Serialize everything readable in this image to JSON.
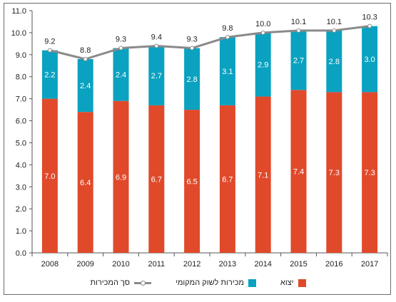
{
  "chart_data": {
    "type": "bar",
    "stacked": true,
    "categories": [
      "2008",
      "2009",
      "2010",
      "2011",
      "2012",
      "2013",
      "2014",
      "2015",
      "2016",
      "2017"
    ],
    "series": [
      {
        "name": "יצוא",
        "color": "#e04a2b",
        "values": [
          7.0,
          6.4,
          6.9,
          6.7,
          6.5,
          6.7,
          7.1,
          7.4,
          7.3,
          7.3
        ]
      },
      {
        "name": "מכירות לשוק המקומי",
        "color": "#0aa2c0",
        "values": [
          2.2,
          2.4,
          2.4,
          2.7,
          2.8,
          3.1,
          2.9,
          2.7,
          2.8,
          3.0
        ]
      }
    ],
    "total_line": {
      "name": "סך המכירות",
      "color": "#8a8a8a",
      "values": [
        9.2,
        8.8,
        9.3,
        9.4,
        9.3,
        9.8,
        10.0,
        10.1,
        10.1,
        10.3
      ]
    },
    "ylim": [
      0,
      11
    ],
    "yticks": [
      "0.0",
      "1.0",
      "2.0",
      "3.0",
      "4.0",
      "5.0",
      "6.0",
      "7.0",
      "8.0",
      "9.0",
      "10.0",
      "11.0"
    ],
    "grid": false,
    "legend_position": "bottom",
    "title": "",
    "xlabel": "",
    "ylabel": ""
  }
}
